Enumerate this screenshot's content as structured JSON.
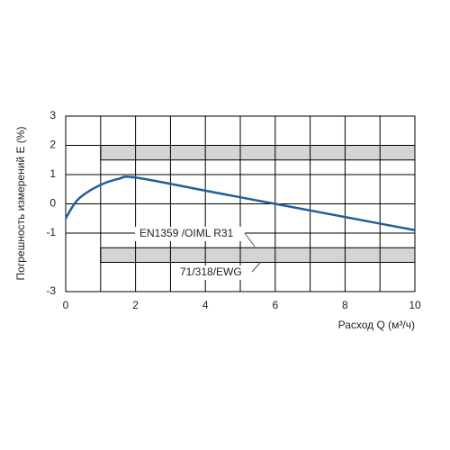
{
  "chart_data": {
    "type": "line",
    "ylabel": "Погрешность измерений Е (%)",
    "xlabel": "Расход Q (м³/ч)",
    "x": [
      0,
      0.25,
      0.5,
      1,
      1.5,
      2,
      4,
      6,
      8,
      10
    ],
    "series": [
      {
        "color": "#1f5f9a",
        "values": [
          -0.5,
          0,
          0.3,
          0.65,
          0.85,
          0.9,
          0.45,
          0,
          -0.45,
          -0.9
        ]
      }
    ],
    "bands": [
      {
        "x": [
          1,
          10
        ],
        "y": [
          1.5,
          2
        ]
      },
      {
        "x": [
          1,
          10
        ],
        "y": [
          -2,
          -1.5
        ]
      }
    ],
    "band_color": "#d4d4d4",
    "annotations": [
      "EN1359 /OIML R31",
      "71/318/EWG"
    ],
    "xlim": [
      0,
      10
    ],
    "ylim": [
      -3,
      3
    ],
    "xticks": [
      0,
      2,
      4,
      6,
      8,
      10
    ],
    "xminor": [
      1,
      3,
      5,
      7,
      9
    ],
    "yticks": [
      3,
      2,
      1,
      0,
      -1,
      -3
    ],
    "grid": true
  }
}
